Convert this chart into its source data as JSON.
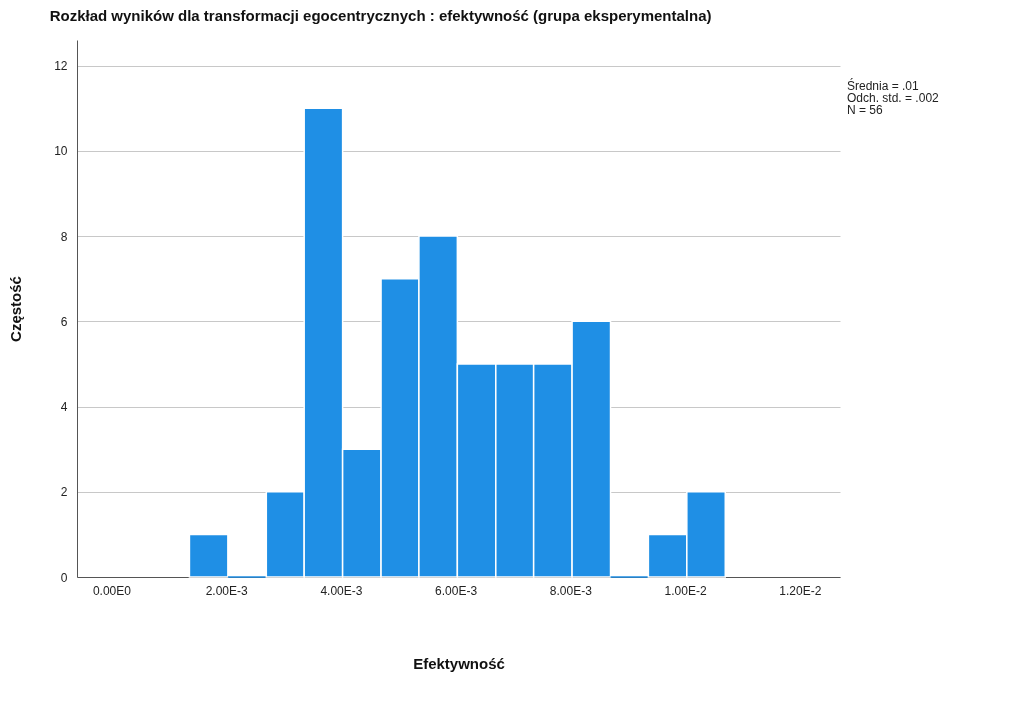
{
  "chart_data": {
    "type": "histogram",
    "title": "Rozkład wyników dla transformacji egocentrycznych : efektywność (grupa eksperymentalna)",
    "xlabel": "Efektywność",
    "ylabel": "Częstość",
    "color": "#1f8fe5",
    "bins": [
      0.00136,
      0.00203,
      0.0027,
      0.00336,
      0.00403,
      0.0047,
      0.00536,
      0.00603,
      0.0067,
      0.00736,
      0.00803,
      0.0087,
      0.00936,
      0.01003,
      0.0107
    ],
    "values": [
      1,
      0,
      2,
      11,
      3,
      7,
      8,
      5,
      5,
      5,
      6,
      0,
      1,
      2
    ],
    "xlim": [
      -0.0006,
      0.0127
    ],
    "xticks": [
      {
        "value": 0,
        "label": "0.00E0"
      },
      {
        "value": 0.002,
        "label": "2.00E-3"
      },
      {
        "value": 0.004,
        "label": "4.00E-3"
      },
      {
        "value": 0.006,
        "label": "6.00E-3"
      },
      {
        "value": 0.008,
        "label": "8.00E-3"
      },
      {
        "value": 0.01,
        "label": "1.00E-2"
      },
      {
        "value": 0.012,
        "label": "1.20E-2"
      }
    ],
    "ylim": [
      0,
      12.6
    ],
    "yticks": [
      0,
      2,
      4,
      6,
      8,
      10,
      12
    ],
    "grid": "y",
    "annotations": [
      "Średnia = .01",
      "Odch. std. = .002",
      "N = 56"
    ]
  }
}
